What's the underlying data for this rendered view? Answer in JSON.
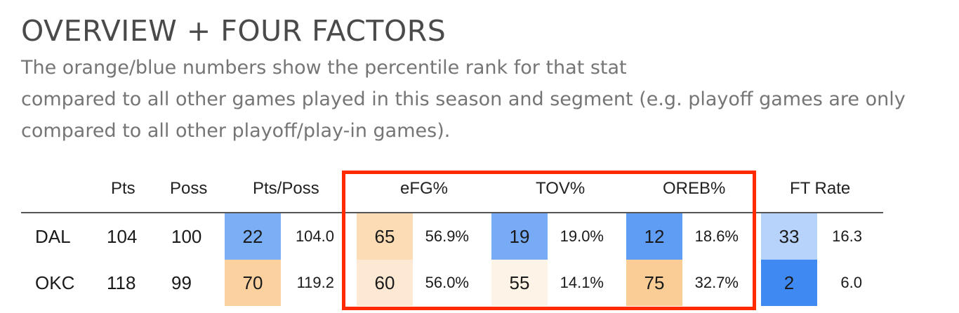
{
  "title": "OVERVIEW + FOUR FACTORS",
  "subtitle_lines": [
    "The orange/blue numbers show the percentile rank for that stat",
    "compared to all other games played in this season and segment (e.g. playoff games are only",
    "compared to all other playoff/play-in games)."
  ],
  "headers": {
    "pts": "Pts",
    "poss": "Poss",
    "pts_poss": "Pts/Poss",
    "efg": "eFG%",
    "tov": "TOV%",
    "oreb": "OREB%",
    "ft_rate": "FT Rate"
  },
  "rows": [
    {
      "team": "DAL",
      "pts": "104",
      "poss": "100",
      "pts_poss_pct": "22",
      "pts_poss_pct_color": "#7aaef5",
      "pts_poss": "104.0",
      "efg_pct": "65",
      "efg_pct_color": "#fbdcb4",
      "efg": "56.9%",
      "tov_pct": "19",
      "tov_pct_color": "#78abf5",
      "tov": "19.0%",
      "oreb_pct": "12",
      "oreb_pct_color": "#5f9cf3",
      "oreb": "18.6%",
      "ft_pct": "33",
      "ft_pct_color": "#b7d3fb",
      "ft": "16.3"
    },
    {
      "team": "OKC",
      "pts": "118",
      "poss": "99",
      "pts_poss_pct": "70",
      "pts_poss_pct_color": "#fbd19f",
      "pts_poss": "119.2",
      "efg_pct": "60",
      "efg_pct_color": "#fde9d3",
      "efg": "56.0%",
      "tov_pct": "55",
      "tov_pct_color": "#fdf3e6",
      "tov": "14.1%",
      "oreb_pct": "75",
      "oreb_pct_color": "#fbcd96",
      "oreb": "32.7%",
      "ft_pct": "2",
      "ft_pct_color": "#3f89f3",
      "ft": "6.0"
    }
  ],
  "colors": {
    "highlight_border": "#ff2a00"
  }
}
